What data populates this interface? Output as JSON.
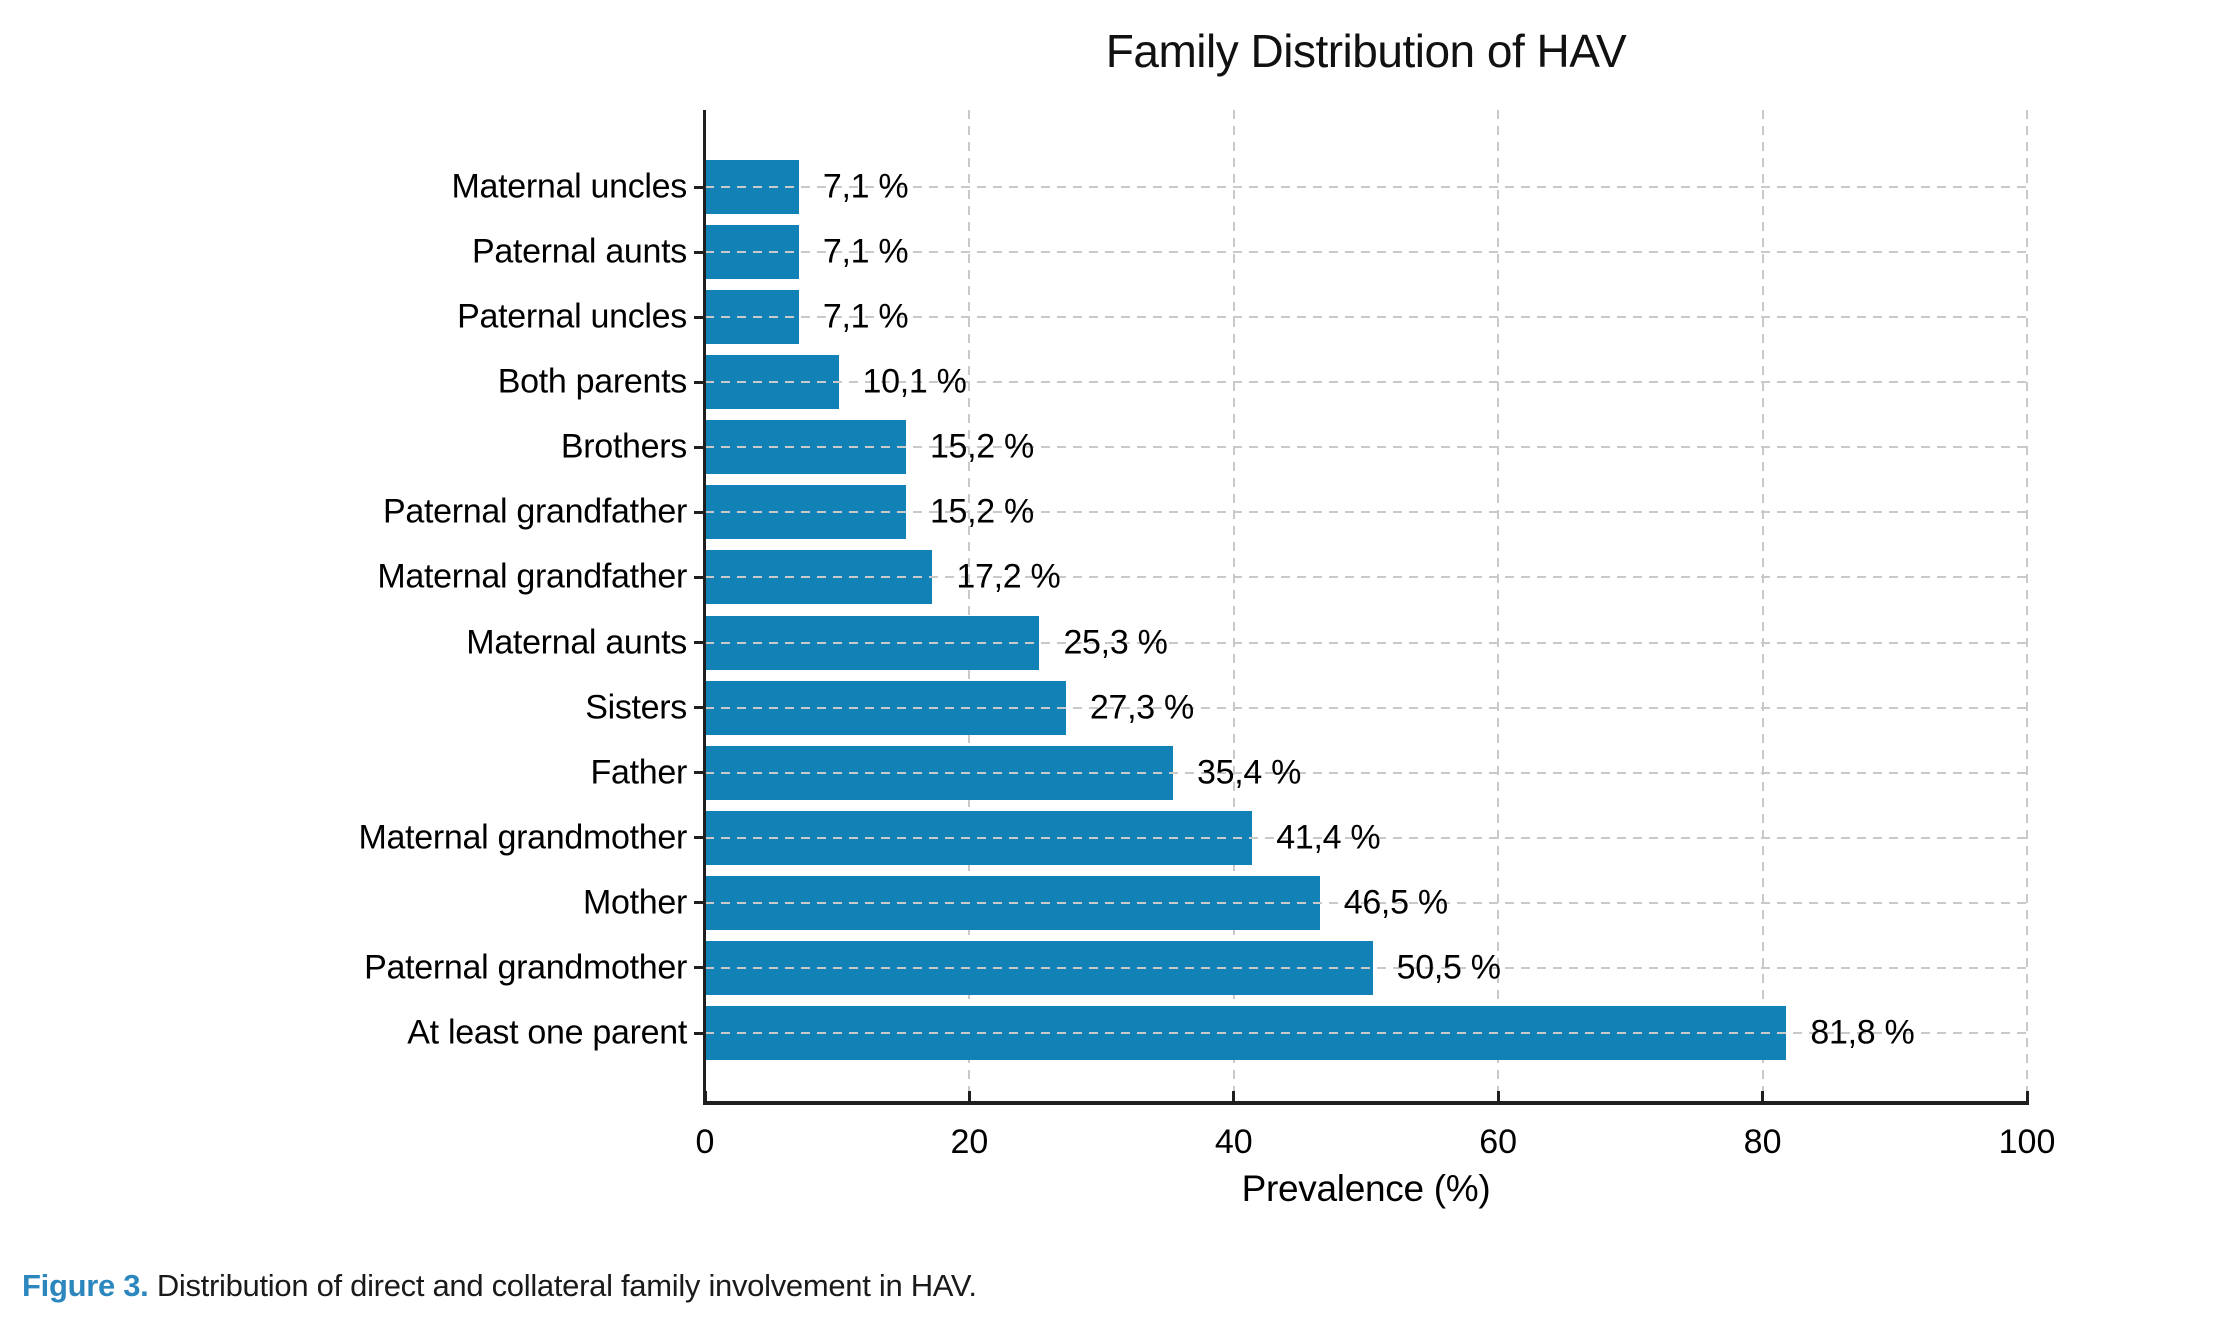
{
  "figure": {
    "title": "Family Distribution of HAV",
    "xlabel": "Prevalence (%)",
    "caption_label": "Figure 3.",
    "caption_text": " Distribution of direct and collateral family involvement in HAV."
  },
  "colors": {
    "bar": "#1281b5",
    "caption_label": "#2b87bd",
    "grid": "#c9c9c9",
    "axis": "#1f1f1f",
    "text": "#000000"
  },
  "chart_data": {
    "type": "bar",
    "orientation": "horizontal",
    "title": "Family Distribution of HAV",
    "xlabel": "Prevalence (%)",
    "ylabel": "",
    "xlim": [
      0,
      100
    ],
    "x_ticks": [
      0,
      20,
      40,
      60,
      80,
      100
    ],
    "grid": true,
    "legend": false,
    "categories": [
      "Maternal uncles",
      "Paternal aunts",
      "Paternal uncles",
      "Both parents",
      "Brothers",
      "Paternal grandfather",
      "Maternal grandfather",
      "Maternal aunts",
      "Sisters",
      "Father",
      "Maternal grandmother",
      "Mother",
      "Paternal grandmother",
      "At least one parent"
    ],
    "values": [
      7.1,
      7.1,
      7.1,
      10.1,
      15.2,
      15.2,
      17.2,
      25.3,
      27.3,
      35.4,
      41.4,
      46.5,
      50.5,
      81.8
    ],
    "value_labels": [
      "7,1 %",
      "7,1 %",
      "7,1 %",
      "10,1 %",
      "15,2 %",
      "15,2 %",
      "17,2 %",
      "25,3 %",
      "27,3 %",
      "35,4 %",
      "41,4 %",
      "46,5 %",
      "50,5 %",
      "81,8 %"
    ]
  }
}
